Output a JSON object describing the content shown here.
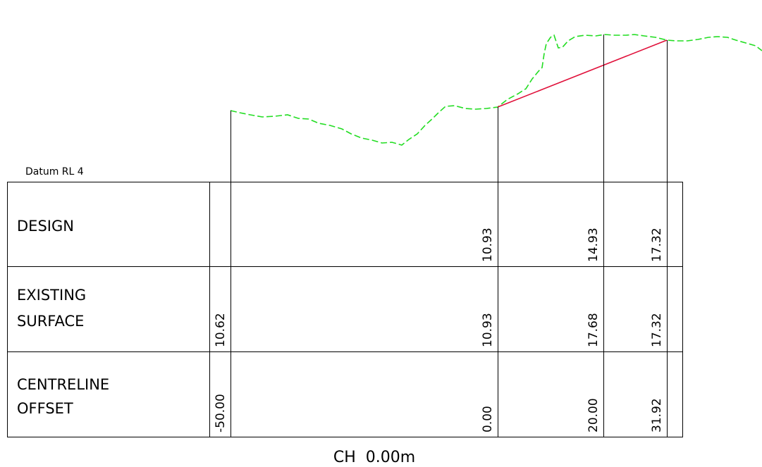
{
  "datum_label": "Datum RL 4",
  "chainage_label": "CH  0.00m",
  "rows": [
    {
      "label_lines": [
        "DESIGN"
      ]
    },
    {
      "label_lines": [
        "EXISTING",
        "SURFACE"
      ]
    },
    {
      "label_lines": [
        "CENTRELINE",
        "OFFSET"
      ]
    }
  ],
  "stations": [
    {
      "offset": "-50.00",
      "design": "",
      "existing": "10.62"
    },
    {
      "offset": "0.00",
      "design": "10.93",
      "existing": "10.93"
    },
    {
      "offset": "20.00",
      "design": "14.93",
      "existing": "17.68"
    },
    {
      "offset": "31.92",
      "design": "17.32",
      "existing": "17.32"
    }
  ],
  "colors": {
    "existing_surface": "#22dd22",
    "design": "#e0103a",
    "lines": "#000000"
  }
}
